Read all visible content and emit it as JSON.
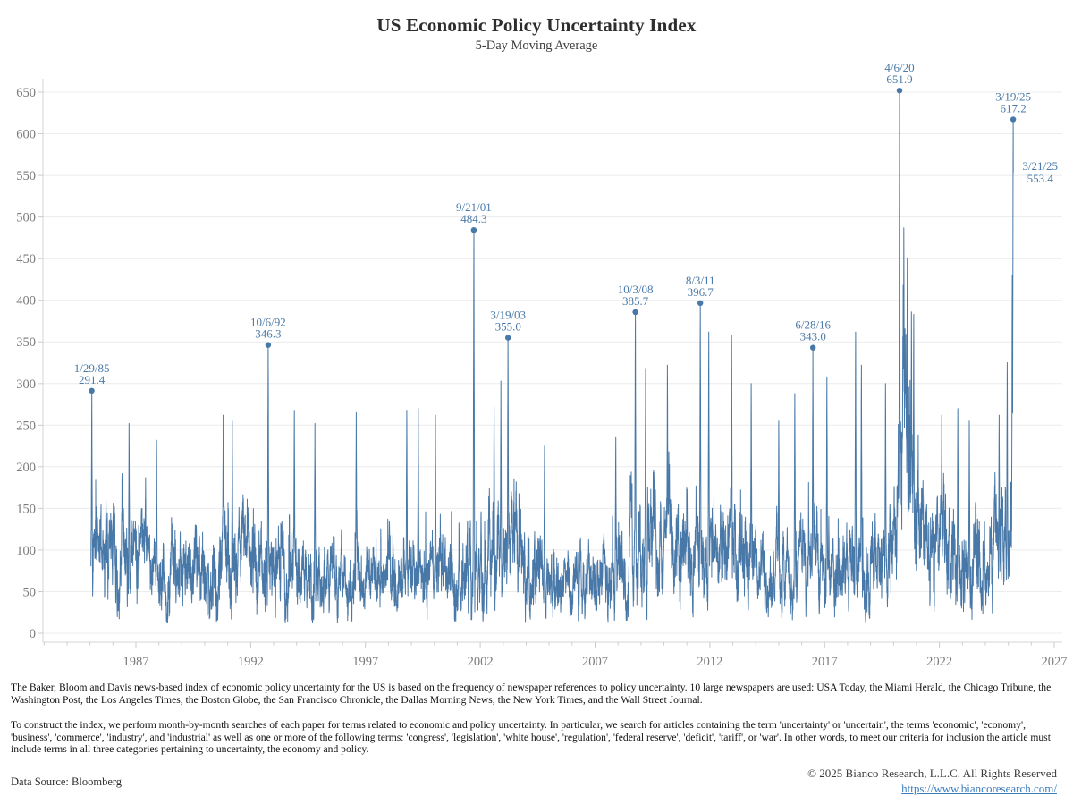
{
  "header": {
    "title": "US Economic Policy Uncertainty Index",
    "subtitle": "5-Day Moving Average"
  },
  "chart_data": {
    "type": "line",
    "title": "US Economic Policy Uncertainty Index",
    "subtitle": "5-Day Moving Average",
    "series_name": "US Economic Policy Uncertainty Index, 5-day moving average",
    "line_color": "#4878a8",
    "annotation_color": "#4a7aa8",
    "grid": "horizontal",
    "legend": "none",
    "xlabel": "",
    "ylabel": "",
    "x_axis": {
      "ticks": [
        1987,
        1992,
        1997,
        2002,
        2007,
        2012,
        2017,
        2022,
        2027
      ],
      "range": [
        1982.95,
        2027.35
      ],
      "minor_tick_every_years": 1
    },
    "y_axis": {
      "ticks": [
        0,
        50,
        100,
        150,
        200,
        250,
        300,
        350,
        400,
        450,
        500,
        550,
        600,
        650
      ],
      "range": [
        0,
        675
      ]
    },
    "start_year": 1985.04,
    "end_year": 2025.216,
    "end_value": 553.4,
    "annotated_peaks": [
      {
        "date": "1/29/85",
        "value": 291.4,
        "year": 1985.077,
        "placement": "above",
        "marker": true
      },
      {
        "date": "10/6/92",
        "value": 346.3,
        "year": 1992.76,
        "placement": "above",
        "marker": true
      },
      {
        "date": "9/21/01",
        "value": 484.3,
        "year": 2001.72,
        "placement": "above",
        "marker": true
      },
      {
        "date": "3/19/03",
        "value": 355.0,
        "year": 2003.21,
        "placement": "above",
        "marker": true
      },
      {
        "date": "10/3/08",
        "value": 385.7,
        "year": 2008.755,
        "placement": "above",
        "marker": true
      },
      {
        "date": "8/3/11",
        "value": 396.7,
        "year": 2011.586,
        "placement": "above",
        "marker": true
      },
      {
        "date": "6/28/16",
        "value": 343.0,
        "year": 2016.49,
        "placement": "above",
        "marker": true
      },
      {
        "date": "4/6/20",
        "value": 651.9,
        "year": 2020.262,
        "placement": "above",
        "marker": true
      },
      {
        "date": "3/19/25",
        "value": 617.2,
        "year": 2025.211,
        "placement": "above",
        "marker": true
      },
      {
        "date": "3/21/25",
        "value": 553.4,
        "year": 2025.216,
        "placement": "right",
        "marker": false
      }
    ],
    "minor_peaks_estimated": [
      [
        1986.7,
        252
      ],
      [
        1987.9,
        232
      ],
      [
        1990.8,
        262
      ],
      [
        1991.2,
        255
      ],
      [
        1993.9,
        268
      ],
      [
        1994.8,
        252
      ],
      [
        1996.6,
        265
      ],
      [
        1998.8,
        268
      ],
      [
        1999.3,
        270
      ],
      [
        2000.05,
        262
      ],
      [
        2002.6,
        272
      ],
      [
        2002.9,
        303
      ],
      [
        2004.8,
        225
      ],
      [
        2007.9,
        235
      ],
      [
        2009.2,
        318
      ],
      [
        2010.15,
        322
      ],
      [
        2011.95,
        362
      ],
      [
        2012.95,
        358
      ],
      [
        2013.8,
        300
      ],
      [
        2015.0,
        255
      ],
      [
        2015.7,
        288
      ],
      [
        2017.1,
        308
      ],
      [
        2018.35,
        362
      ],
      [
        2018.6,
        322
      ],
      [
        2019.65,
        300
      ],
      [
        2020.45,
        487
      ],
      [
        2020.6,
        450
      ],
      [
        2020.78,
        386
      ],
      [
        2020.88,
        383
      ],
      [
        2022.1,
        262
      ],
      [
        2022.8,
        270
      ],
      [
        2023.3,
        255
      ],
      [
        2024.6,
        262
      ],
      [
        2024.95,
        325
      ],
      [
        2025.17,
        430
      ]
    ],
    "envelope_year_base_amp": [
      [
        1985.0,
        115,
        90
      ],
      [
        1986.5,
        115,
        95
      ],
      [
        1988.5,
        90,
        70
      ],
      [
        1990.5,
        105,
        110
      ],
      [
        1992.0,
        105,
        110
      ],
      [
        1993.5,
        100,
        115
      ],
      [
        1995.5,
        85,
        90
      ],
      [
        1997.5,
        72,
        80
      ],
      [
        1999.0,
        85,
        120
      ],
      [
        2000.5,
        88,
        110
      ],
      [
        2001.6,
        105,
        120
      ],
      [
        2002.5,
        125,
        110
      ],
      [
        2003.3,
        115,
        110
      ],
      [
        2005.0,
        80,
        75
      ],
      [
        2007.0,
        72,
        70
      ],
      [
        2008.3,
        95,
        100
      ],
      [
        2009.0,
        130,
        120
      ],
      [
        2010.5,
        115,
        120
      ],
      [
        2011.8,
        125,
        140
      ],
      [
        2013.0,
        110,
        130
      ],
      [
        2014.5,
        85,
        80
      ],
      [
        2015.8,
        92,
        100
      ],
      [
        2016.6,
        105,
        110
      ],
      [
        2017.5,
        100,
        120
      ],
      [
        2018.5,
        105,
        130
      ],
      [
        2019.7,
        115,
        120
      ],
      [
        2020.15,
        140,
        120
      ],
      [
        2020.32,
        290,
        120
      ],
      [
        2020.55,
        270,
        130
      ],
      [
        2020.8,
        240,
        90
      ],
      [
        2021.1,
        160,
        90
      ],
      [
        2021.8,
        125,
        90
      ],
      [
        2023.0,
        120,
        95
      ],
      [
        2024.3,
        115,
        100
      ],
      [
        2024.9,
        145,
        110
      ],
      [
        2025.216,
        180,
        140
      ]
    ],
    "samples": 7300,
    "seed": 20250321
  },
  "footnotes": {
    "para1": "The Baker, Bloom and Davis news-based index of economic policy uncertainty for the US is based on the frequency of newspaper references to policy uncertainty. 10 large newspapers are used: USA Today, the Miami Herald, the Chicago Tribune, the Washington Post, the Los Angeles Times, the Boston Globe, the San Francisco Chronicle, the Dallas Morning News, the New York Times, and the Wall Street Journal.",
    "para2": "To construct the index, we perform month-by-month searches of each paper for terms related to economic and policy uncertainty. In particular, we search for articles containing the term 'uncertainty' or 'uncertain', the terms 'economic', 'economy', 'business', 'commerce', 'industry', and 'industrial' as well as one or more of the following terms: 'congress', 'legislation', 'white house', 'regulation', 'federal reserve', 'deficit', 'tariff', or 'war'. In other words, to meet our criteria for inclusion the article must include terms in all three categories pertaining to uncertainty, the economy and policy."
  },
  "footer": {
    "data_source": "Data Source: Bloomberg",
    "copyright": "© 2025  Bianco Research, L.L.C. All Rights Reserved",
    "link": "https://www.biancoresearch.com/"
  }
}
